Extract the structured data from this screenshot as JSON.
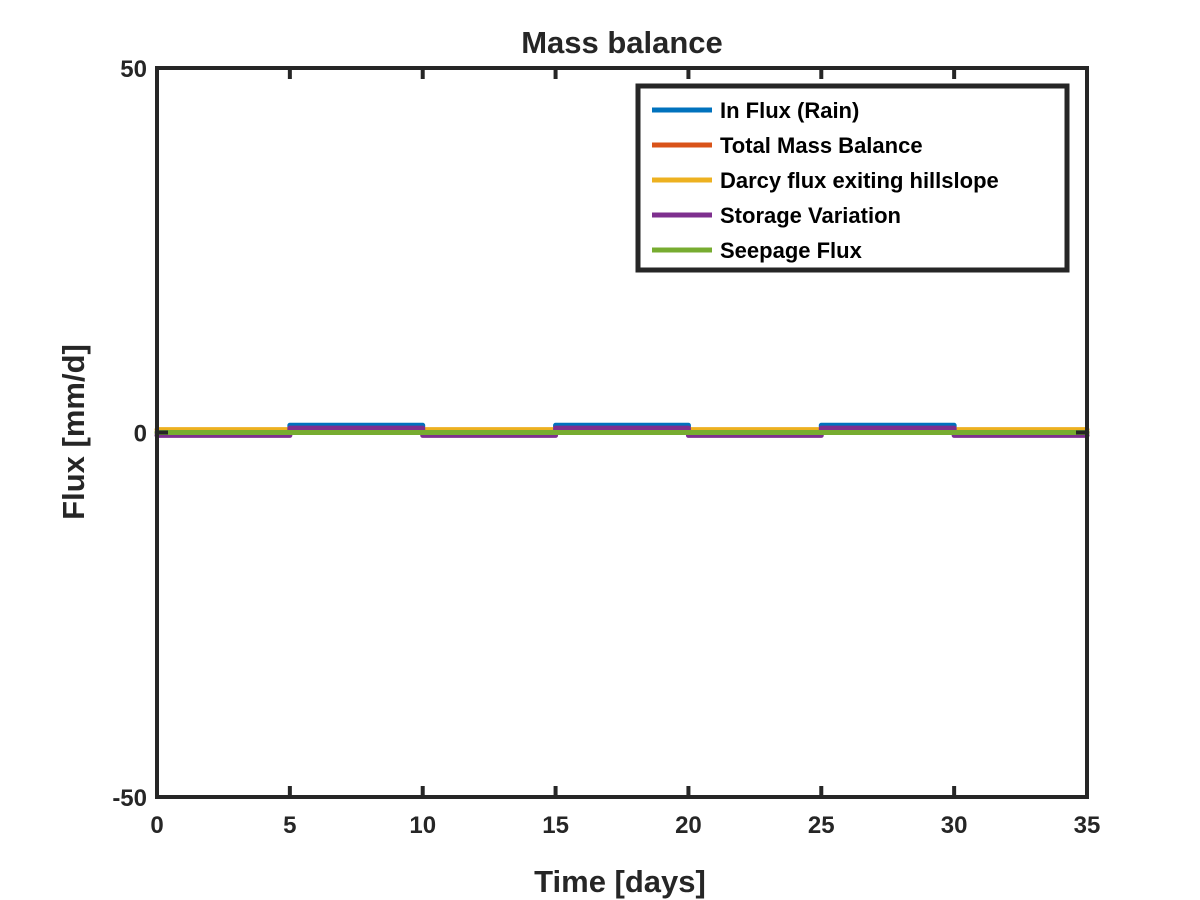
{
  "chart_data": {
    "type": "line",
    "title": "Mass balance",
    "xlabel": "Time [days]",
    "ylabel": "Flux [mm/d]",
    "xlim": [
      0,
      35
    ],
    "ylim": [
      -50,
      50
    ],
    "xticks": [
      "0",
      "5",
      "10",
      "15",
      "20",
      "25",
      "30",
      "35"
    ],
    "yticks": [
      "-50",
      "0",
      "50"
    ],
    "grid": false,
    "legend_position": "top-right",
    "series": [
      {
        "name": "In Flux (Rain)",
        "color": "#0072BD",
        "x": [
          0,
          5,
          5,
          10,
          10,
          15,
          15,
          20,
          20,
          25,
          25,
          30,
          30,
          35
        ],
        "y": [
          0,
          0,
          1,
          1,
          0,
          0,
          1,
          1,
          0,
          0,
          1,
          1,
          0,
          0
        ]
      },
      {
        "name": "Total Mass Balance",
        "color": "#D95319",
        "x": [
          0,
          35
        ],
        "y": [
          0,
          0
        ]
      },
      {
        "name": "Darcy flux exiting hillslope",
        "color": "#EDB120",
        "x": [
          0,
          5,
          10,
          15,
          20,
          25,
          30,
          35
        ],
        "y": [
          0.4,
          0.4,
          0.4,
          0.4,
          0.4,
          0.4,
          0.4,
          0.4
        ]
      },
      {
        "name": "Storage Variation",
        "color": "#7E2F8E",
        "x": [
          0,
          5,
          5,
          10,
          10,
          15,
          15,
          20,
          20,
          25,
          25,
          30,
          30,
          35
        ],
        "y": [
          -0.4,
          -0.4,
          0.6,
          0.6,
          -0.4,
          -0.4,
          0.6,
          0.6,
          -0.4,
          -0.4,
          0.6,
          0.6,
          -0.4,
          -0.4
        ]
      },
      {
        "name": "Seepage Flux",
        "color": "#77AC30",
        "x": [
          0,
          35
        ],
        "y": [
          0,
          0
        ]
      }
    ]
  }
}
